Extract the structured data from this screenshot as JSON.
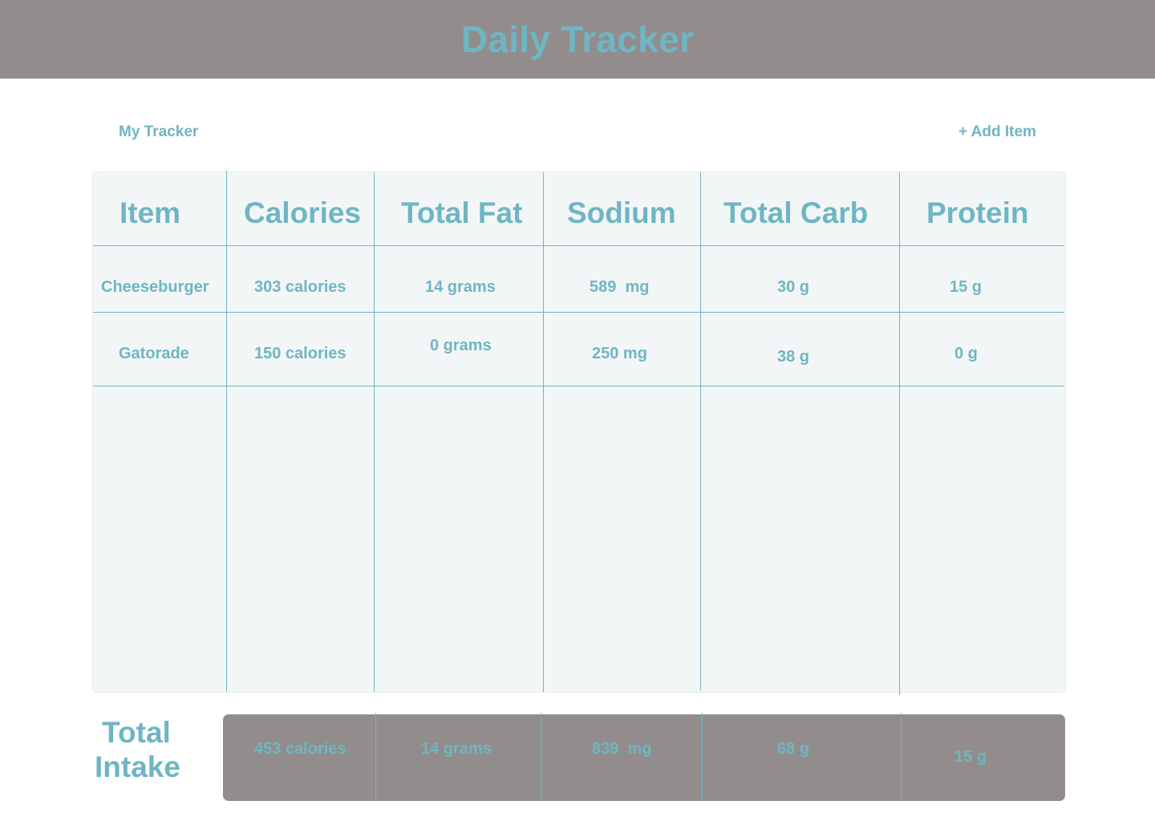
{
  "header": {
    "title": "Daily Tracker"
  },
  "nav": {
    "my_tracker": "My Tracker",
    "add_item": "+ Add Item"
  },
  "table": {
    "columns": [
      "Item",
      "Calories",
      "Total Fat",
      "Sodium",
      "Total Carb",
      "Protein"
    ],
    "rows": [
      [
        "Cheeseburger",
        "303 calories",
        "14 grams",
        "589  mg",
        "30 g",
        "15 g"
      ],
      [
        "Gatorade",
        "150 calories",
        "0 grams",
        "250 mg",
        "38 g",
        "0 g"
      ]
    ]
  },
  "totals": {
    "label_line1": "Total",
    "label_line2": "Intake",
    "values": [
      "453 calories",
      "14 grams",
      "839  mg",
      "68 g",
      "15 g"
    ]
  },
  "colors": {
    "accent": "#6eb6c3",
    "header_bg": "#928d8c",
    "panel_bg": "#f3f6f7"
  }
}
